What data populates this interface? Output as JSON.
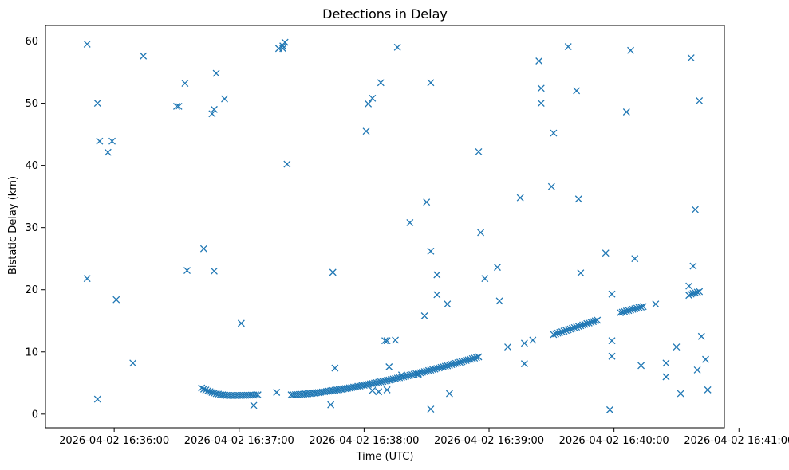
{
  "chart_data": {
    "type": "scatter",
    "title": "Detections in Delay",
    "xlabel": "Time (UTC)",
    "ylabel": "Bistatic Delay (km)",
    "marker": "x",
    "color": "#1f77b4",
    "xlim": [
      -33,
      293
    ],
    "ylim": [
      -2.2,
      62.5
    ],
    "xticks": [
      {
        "value": 0,
        "label": "2026-04-02 16:36:00"
      },
      {
        "value": 60,
        "label": "2026-04-02 16:37:00"
      },
      {
        "value": 120,
        "label": "2026-04-02 16:38:00"
      },
      {
        "value": 180,
        "label": "2026-04-02 16:39:00"
      },
      {
        "value": 240,
        "label": "2026-04-02 16:40:00"
      },
      {
        "value": 300,
        "label": "2026-04-02 16:41:00"
      }
    ],
    "yticks": [
      {
        "value": 0,
        "label": "0"
      },
      {
        "value": 10,
        "label": "10"
      },
      {
        "value": 20,
        "label": "20"
      },
      {
        "value": 30,
        "label": "30"
      },
      {
        "value": 40,
        "label": "40"
      },
      {
        "value": 50,
        "label": "50"
      },
      {
        "value": 60,
        "label": "60"
      }
    ],
    "noise_points": [
      [
        -13,
        59.5
      ],
      [
        -13,
        21.8
      ],
      [
        -8,
        50.0
      ],
      [
        -8,
        2.4
      ],
      [
        -7,
        43.9
      ],
      [
        -3,
        42.1
      ],
      [
        -1,
        43.9
      ],
      [
        1,
        18.4
      ],
      [
        9,
        8.2
      ],
      [
        14,
        57.6
      ],
      [
        30,
        49.5
      ],
      [
        31,
        49.5
      ],
      [
        34,
        53.2
      ],
      [
        35,
        23.1
      ],
      [
        43,
        26.6
      ],
      [
        47,
        48.3
      ],
      [
        48,
        49.0
      ],
      [
        48,
        23.0
      ],
      [
        49,
        54.8
      ],
      [
        53,
        50.7
      ],
      [
        61,
        14.6
      ],
      [
        67,
        1.4
      ],
      [
        78,
        3.5
      ],
      [
        79,
        58.8
      ],
      [
        81,
        59.2
      ],
      [
        81,
        58.8
      ],
      [
        82,
        59.8
      ],
      [
        83,
        40.2
      ],
      [
        104,
        1.5
      ],
      [
        105,
        22.8
      ],
      [
        106,
        7.4
      ],
      [
        121,
        45.5
      ],
      [
        122,
        49.9
      ],
      [
        124,
        50.8
      ],
      [
        128,
        53.3
      ],
      [
        130,
        11.8
      ],
      [
        131,
        11.8
      ],
      [
        132,
        7.6
      ],
      [
        135,
        11.9
      ],
      [
        136,
        59.0
      ],
      [
        142,
        30.8
      ],
      [
        149,
        15.8
      ],
      [
        150,
        34.1
      ],
      [
        152,
        26.2
      ],
      [
        152,
        53.3
      ],
      [
        152,
        0.8
      ],
      [
        155,
        22.4
      ],
      [
        155,
        19.2
      ],
      [
        160,
        17.7
      ],
      [
        161,
        3.3
      ],
      [
        175,
        42.2
      ],
      [
        176,
        29.2
      ],
      [
        178,
        21.8
      ],
      [
        184,
        23.6
      ],
      [
        185,
        18.2
      ],
      [
        189,
        10.8
      ],
      [
        195,
        34.8
      ],
      [
        197,
        11.4
      ],
      [
        197,
        8.1
      ],
      [
        201,
        11.9
      ],
      [
        204,
        56.8
      ],
      [
        205,
        52.4
      ],
      [
        205,
        50.0
      ],
      [
        210,
        36.6
      ],
      [
        211,
        45.2
      ],
      [
        218,
        59.1
      ],
      [
        222,
        52.0
      ],
      [
        223,
        34.6
      ],
      [
        224,
        22.7
      ],
      [
        236,
        25.9
      ],
      [
        238,
        0.7
      ],
      [
        239,
        19.3
      ],
      [
        239,
        11.8
      ],
      [
        239,
        9.3
      ],
      [
        246,
        48.6
      ],
      [
        248,
        58.5
      ],
      [
        250,
        25.0
      ],
      [
        253,
        7.8
      ],
      [
        260,
        17.7
      ],
      [
        265,
        6.0
      ],
      [
        265,
        8.2
      ],
      [
        270,
        10.8
      ],
      [
        272,
        3.3
      ],
      [
        276,
        19.1
      ],
      [
        276,
        20.6
      ],
      [
        277,
        57.3
      ],
      [
        278,
        23.8
      ],
      [
        279,
        32.9
      ],
      [
        280,
        7.1
      ],
      [
        281,
        50.4
      ],
      [
        282,
        12.5
      ],
      [
        284,
        8.8
      ],
      [
        285,
        3.9
      ],
      [
        124,
        3.8
      ],
      [
        127,
        3.6
      ],
      [
        146,
        6.4
      ],
      [
        138,
        6.3
      ],
      [
        131,
        3.9
      ]
    ],
    "track_segments": [
      {
        "t_start": 42,
        "t_end": 69,
        "step": 1,
        "peak_t": 56,
        "peak_v": 3.0,
        "start_v": 4.2,
        "end_v": 3.1
      },
      {
        "t_start": 85,
        "t_end": 175,
        "step": 1,
        "start_v": 3.1,
        "end_v": 9.2,
        "curve": 1.45
      },
      {
        "t_start": 211,
        "t_end": 232,
        "step": 1,
        "start_v": 12.8,
        "end_v": 15.1,
        "curve": 1.0
      },
      {
        "t_start": 243,
        "t_end": 254,
        "step": 1,
        "start_v": 16.3,
        "end_v": 17.3,
        "curve": 1.0
      },
      {
        "t_start": 277,
        "t_end": 281,
        "step": 1,
        "start_v": 19.3,
        "end_v": 19.7,
        "curve": 1.0
      }
    ]
  }
}
